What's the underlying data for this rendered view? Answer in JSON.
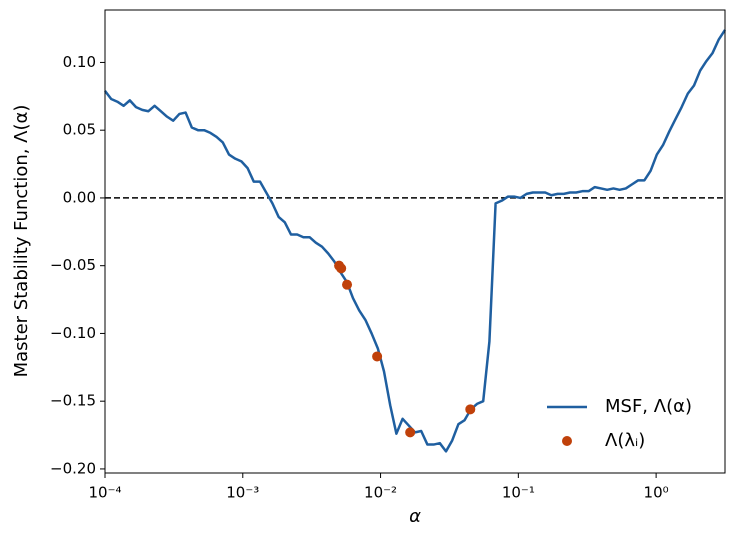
{
  "chart_data": {
    "type": "line",
    "xlabel": "α",
    "ylabel": "Master Stability Function, Λ(α)",
    "xscale": "log",
    "xlim": [
      0.0001,
      3.162
    ],
    "ylim": [
      -0.203,
      0.1387
    ],
    "xticks": [
      {
        "value": 0.0001,
        "label": "10⁻⁴"
      },
      {
        "value": 0.001,
        "label": "10⁻³"
      },
      {
        "value": 0.01,
        "label": "10⁻²"
      },
      {
        "value": 0.1,
        "label": "10⁻¹"
      },
      {
        "value": 1,
        "label": "10⁰"
      }
    ],
    "yticks": [
      {
        "value": -0.2,
        "label": "−0.20"
      },
      {
        "value": -0.15,
        "label": "−0.15"
      },
      {
        "value": -0.1,
        "label": "−0.10"
      },
      {
        "value": -0.05,
        "label": "−0.05"
      },
      {
        "value": 0,
        "label": "0.00"
      },
      {
        "value": 0.05,
        "label": "0.05"
      },
      {
        "value": 0.1,
        "label": "0.10"
      }
    ],
    "reference_line": {
      "y": 0,
      "style": "dashed",
      "color": "#000000"
    },
    "legend": "lower right",
    "series": [
      {
        "name": "MSF, Λ(α)",
        "type": "line",
        "color": "#1f5fa0",
        "x": [
          0.0001,
          0.0001109,
          0.000123,
          0.0001365,
          0.0001514,
          0.0001679,
          0.0001862,
          0.0002065,
          0.0002291,
          0.0002541,
          0.0002818,
          0.0003126,
          0.0003467,
          0.0003846,
          0.0004266,
          0.0004732,
          0.0005248,
          0.0005821,
          0.0006457,
          0.0007161,
          0.0007943,
          0.000881,
          0.0009772,
          0.001084,
          0.001202,
          0.001334,
          0.001479,
          0.001641,
          0.00182,
          0.002018,
          0.002239,
          0.002483,
          0.002754,
          0.003055,
          0.003388,
          0.003758,
          0.004169,
          0.004624,
          0.005129,
          0.005689,
          0.00631,
          0.006998,
          0.007762,
          0.00861,
          0.00955,
          0.01059,
          0.01175,
          0.01303,
          0.01445,
          0.01603,
          0.01778,
          0.01972,
          0.02188,
          0.02427,
          0.02692,
          0.02985,
          0.03311,
          0.03673,
          0.04074,
          0.04519,
          0.05012,
          0.05559,
          0.06166,
          0.06839,
          0.07586,
          0.08414,
          0.09333,
          0.1035,
          0.1148,
          0.1274,
          0.1413,
          0.1567,
          0.1738,
          0.1928,
          0.2138,
          0.2371,
          0.263,
          0.2917,
          0.3236,
          0.3589,
          0.3981,
          0.4416,
          0.4898,
          0.5433,
          0.6026,
          0.6683,
          0.7413,
          0.8222,
          0.912,
          1.012,
          1.122,
          1.245,
          1.38,
          1.531,
          1.698,
          1.884,
          2.089,
          2.317,
          2.57,
          2.851,
          3.162
        ],
        "values": [
          0.079,
          0.073,
          0.071,
          0.068,
          0.072,
          0.067,
          0.065,
          0.064,
          0.068,
          0.064,
          0.06,
          0.057,
          0.062,
          0.063,
          0.052,
          0.05,
          0.05,
          0.048,
          0.045,
          0.041,
          0.032,
          0.029,
          0.027,
          0.022,
          0.012,
          0.012,
          0.004,
          -0.004,
          -0.014,
          -0.018,
          -0.027,
          -0.027,
          -0.029,
          -0.029,
          -0.033,
          -0.036,
          -0.041,
          -0.047,
          -0.055,
          -0.062,
          -0.074,
          -0.083,
          -0.09,
          -0.1,
          -0.111,
          -0.128,
          -0.153,
          -0.174,
          -0.163,
          -0.168,
          -0.173,
          -0.172,
          -0.182,
          -0.182,
          -0.181,
          -0.187,
          -0.179,
          -0.167,
          -0.164,
          -0.156,
          -0.152,
          -0.15,
          -0.106,
          -0.004,
          -0.002,
          0.001,
          0.001,
          0,
          0.003,
          0.004,
          0.004,
          0.004,
          0.002,
          0.003,
          0.003,
          0.004,
          0.004,
          0.005,
          0.005,
          0.008,
          0.007,
          0.006,
          0.007,
          0.006,
          0.007,
          0.01,
          0.013,
          0.013,
          0.02,
          0.032,
          0.039,
          0.049,
          0.058,
          0.067,
          0.077,
          0.083,
          0.094,
          0.101,
          0.107,
          0.117,
          0.124
        ]
      },
      {
        "name": "Λ(λᵢ)",
        "type": "scatter",
        "color": "#c0410a",
        "x": [
          0.005,
          0.00518,
          0.00571,
          0.00944,
          0.0164,
          0.0448
        ],
        "values": [
          -0.05,
          -0.052,
          -0.064,
          -0.117,
          -0.173,
          -0.156
        ]
      }
    ]
  }
}
